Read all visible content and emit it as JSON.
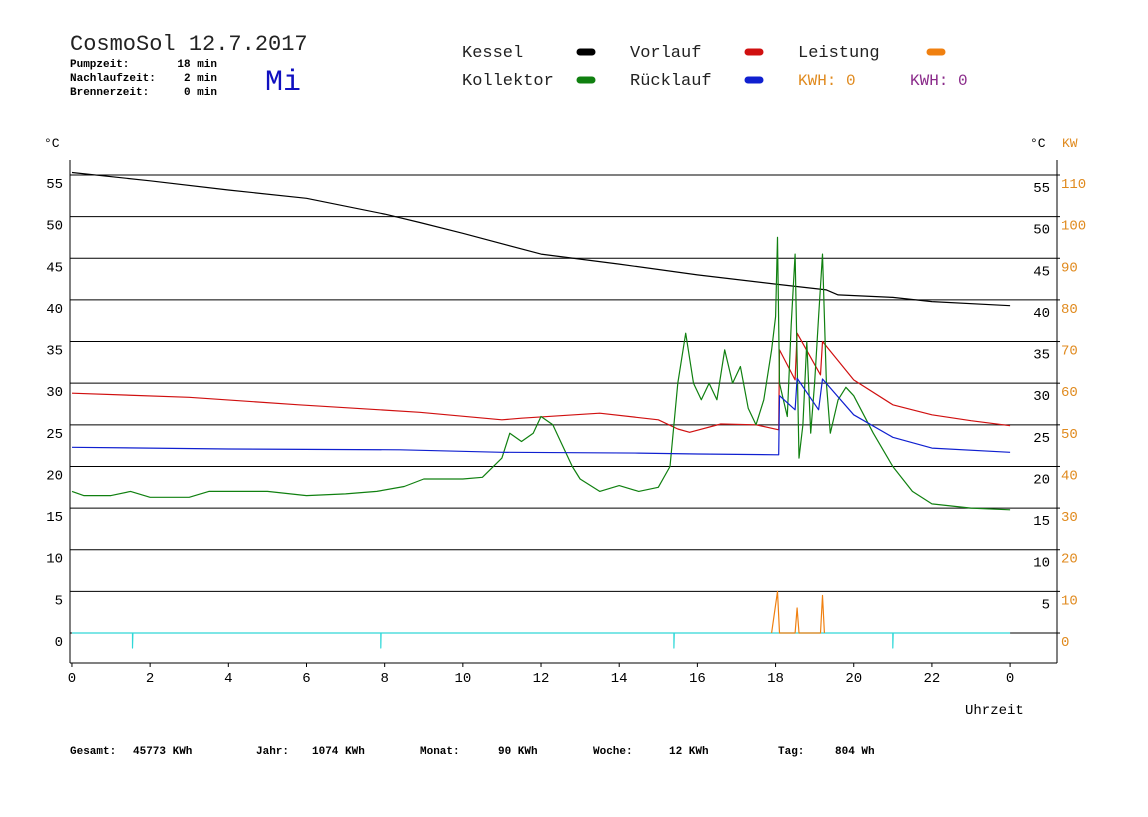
{
  "chart_data": {
    "type": "line",
    "title": "CosmoSol 12.7.2017",
    "day": "Mi",
    "info": [
      {
        "label": "Pumpzeit:",
        "value": "18 min"
      },
      {
        "label": "Nachlaufzeit:",
        "value": "2 min"
      },
      {
        "label": "Brennerzeit:",
        "value": "0 min"
      }
    ],
    "kwh_labels": [
      {
        "text": "KWH: 0",
        "color": "#e08a1e"
      },
      {
        "text": "KWH: 0",
        "color": "#8a2a8a"
      }
    ],
    "y_label": "°C",
    "y_right_label": "°C",
    "y2_label": "KW",
    "x_label": "Uhrzeit",
    "xlim": [
      -0.05,
      25.2
    ],
    "xticks": [
      0,
      2,
      4,
      6,
      8,
      10,
      12,
      14,
      16,
      18,
      20,
      22,
      {
        "value": 24,
        "label": "0"
      }
    ],
    "ylim": [
      -3.6,
      56.8
    ],
    "yticks": [
      0,
      5,
      10,
      15,
      20,
      25,
      30,
      35,
      40,
      45,
      50,
      55
    ],
    "y_right_ticks": [
      5,
      10,
      15,
      20,
      25,
      30,
      35,
      40,
      45,
      50,
      55
    ],
    "y2lim": [
      -7.2,
      113.6
    ],
    "y2ticks": [
      0,
      10,
      20,
      30,
      40,
      50,
      60,
      70,
      80,
      90,
      100,
      110
    ],
    "grid": true,
    "series": [
      {
        "name": "Kessel",
        "color": "#000000",
        "x": [
          0,
          2,
          4,
          6,
          8,
          8.9,
          10,
          12,
          14,
          16,
          18,
          19.3,
          19.6,
          21,
          22,
          24
        ],
        "values": [
          55.3,
          54.3,
          53.2,
          52.2,
          50.3,
          49.3,
          48,
          45.5,
          44.3,
          43,
          41.9,
          41.2,
          40.6,
          40.3,
          39.8,
          39.3
        ]
      },
      {
        "name": "Vorlauf",
        "color": "#d01010",
        "x": [
          0,
          3,
          5.8,
          8.9,
          11,
          11.5,
          13.5,
          15,
          15.5,
          15.8,
          16.6,
          17.5,
          18.08,
          18.1,
          18.5,
          18.55,
          19.15,
          19.2,
          20,
          21,
          22,
          23,
          24
        ],
        "values": [
          28.8,
          28.3,
          27.4,
          26.5,
          25.6,
          25.8,
          26.4,
          25.6,
          24.5,
          24.1,
          25.1,
          25,
          24.4,
          34,
          30.4,
          36,
          31,
          35,
          30.4,
          27.4,
          26.2,
          25.5,
          24.9
        ]
      },
      {
        "name": "Leistung",
        "color": "#f08010",
        "x": [
          17.9,
          18.05,
          18.1,
          18.5,
          18.55,
          18.6,
          19.15,
          19.2,
          19.25
        ],
        "values": [
          0,
          10,
          0,
          0,
          6,
          0,
          0,
          9,
          0
        ],
        "axis": "y2"
      },
      {
        "name": "Kollektor",
        "color": "#108010",
        "x": [
          0,
          0.3,
          1,
          1.5,
          2,
          3,
          3.5,
          5,
          6,
          7,
          7.8,
          8.5,
          9,
          10,
          10.5,
          11,
          11.2,
          11.5,
          11.8,
          12,
          12.3,
          12.5,
          12.8,
          13,
          13.5,
          14,
          14.5,
          15,
          15.3,
          15.5,
          15.7,
          15.9,
          16.1,
          16.3,
          16.5,
          16.7,
          16.9,
          17.1,
          17.3,
          17.5,
          17.7,
          17.9,
          18,
          18.05,
          18.1,
          18.3,
          18.4,
          18.5,
          18.6,
          18.7,
          18.8,
          18.9,
          19,
          19.1,
          19.2,
          19.3,
          19.4,
          19.6,
          19.8,
          20,
          20.5,
          21,
          21.5,
          22,
          23,
          24
        ],
        "values": [
          17,
          16.5,
          16.5,
          17,
          16.3,
          16.3,
          17,
          17,
          16.5,
          16.7,
          17,
          17.6,
          18.5,
          18.5,
          18.7,
          21,
          24,
          23,
          24,
          26,
          25,
          23,
          20,
          18.5,
          17,
          17.7,
          17,
          17.5,
          20,
          30,
          36,
          30,
          28,
          30,
          28,
          34,
          30,
          32,
          27,
          25,
          28,
          34,
          38,
          47.5,
          30,
          26,
          37,
          45.5,
          21,
          25,
          35,
          24,
          30,
          38,
          45.5,
          30,
          24,
          28,
          29.5,
          28.5,
          24,
          20,
          17,
          15.5,
          15,
          14.8
        ]
      },
      {
        "name": "Rücklauf",
        "color": "#1020d0",
        "x": [
          0,
          4,
          8.4,
          11,
          14.5,
          16,
          18.08,
          18.1,
          18.5,
          18.55,
          19.1,
          19.2,
          20,
          21,
          22,
          24
        ],
        "values": [
          22.3,
          22.1,
          22,
          21.7,
          21.6,
          21.5,
          21.4,
          28.5,
          26.8,
          30.6,
          26.8,
          30.5,
          26.2,
          23.5,
          22.2,
          21.7
        ]
      }
    ],
    "pump": {
      "color": "#30d8d8",
      "x": [
        0,
        1.55,
        1.55,
        1.56,
        7.9,
        7.9,
        7.91,
        15.4,
        15.4,
        15.41,
        21,
        21,
        21.01,
        24
      ],
      "values": [
        0,
        0,
        -1.8,
        0,
        0,
        -1.8,
        0,
        0,
        -1.8,
        0,
        0,
        -1.8,
        0,
        0
      ]
    },
    "footer": [
      {
        "label": "Gesamt:",
        "value": "45773 KWh"
      },
      {
        "label": "Jahr:",
        "value": "1074 KWh"
      },
      {
        "label": "Monat:",
        "value": "90 KWh"
      },
      {
        "label": "Woche:",
        "value": "12 KWh"
      },
      {
        "label": "Tag:",
        "value": "804 Wh"
      }
    ]
  }
}
